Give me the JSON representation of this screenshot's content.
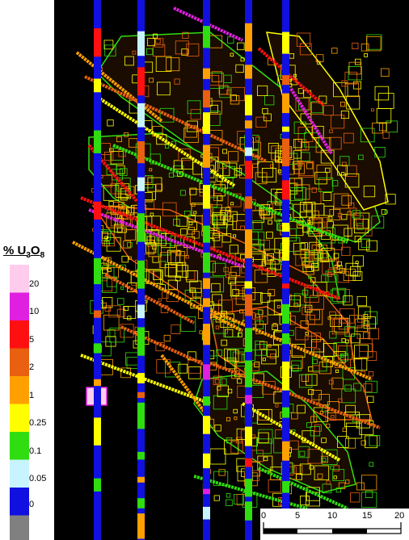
{
  "legend": {
    "title_prefix": "% U",
    "title_sub1": "3",
    "title_mid": "O",
    "title_sub2": "8",
    "entries": [
      {
        "label": "20",
        "color": "#ffccee"
      },
      {
        "label": "10",
        "color": "#e020e0"
      },
      {
        "label": "5",
        "color": "#ff1010"
      },
      {
        "label": "2",
        "color": "#e86010"
      },
      {
        "label": "1",
        "color": "#ffa000"
      },
      {
        "label": "0.25",
        "color": "#ffff00"
      },
      {
        "label": "0.1",
        "color": "#30dd10"
      },
      {
        "label": "0.05",
        "color": "#c8f4ff"
      },
      {
        "label": "0",
        "color": "#1010e0"
      },
      {
        "label": "",
        "color": "#808080"
      }
    ]
  },
  "scale_bar": {
    "labels": [
      "0",
      "5",
      "10",
      "15",
      "20"
    ]
  },
  "colors": {
    "background": "#000000",
    "drillhole_base": "#1010e0",
    "outline_green": "#30dd10",
    "outline_yellow": "#ffff00",
    "outline_orange": "#ffa000",
    "outline_darkorange": "#e86010"
  }
}
